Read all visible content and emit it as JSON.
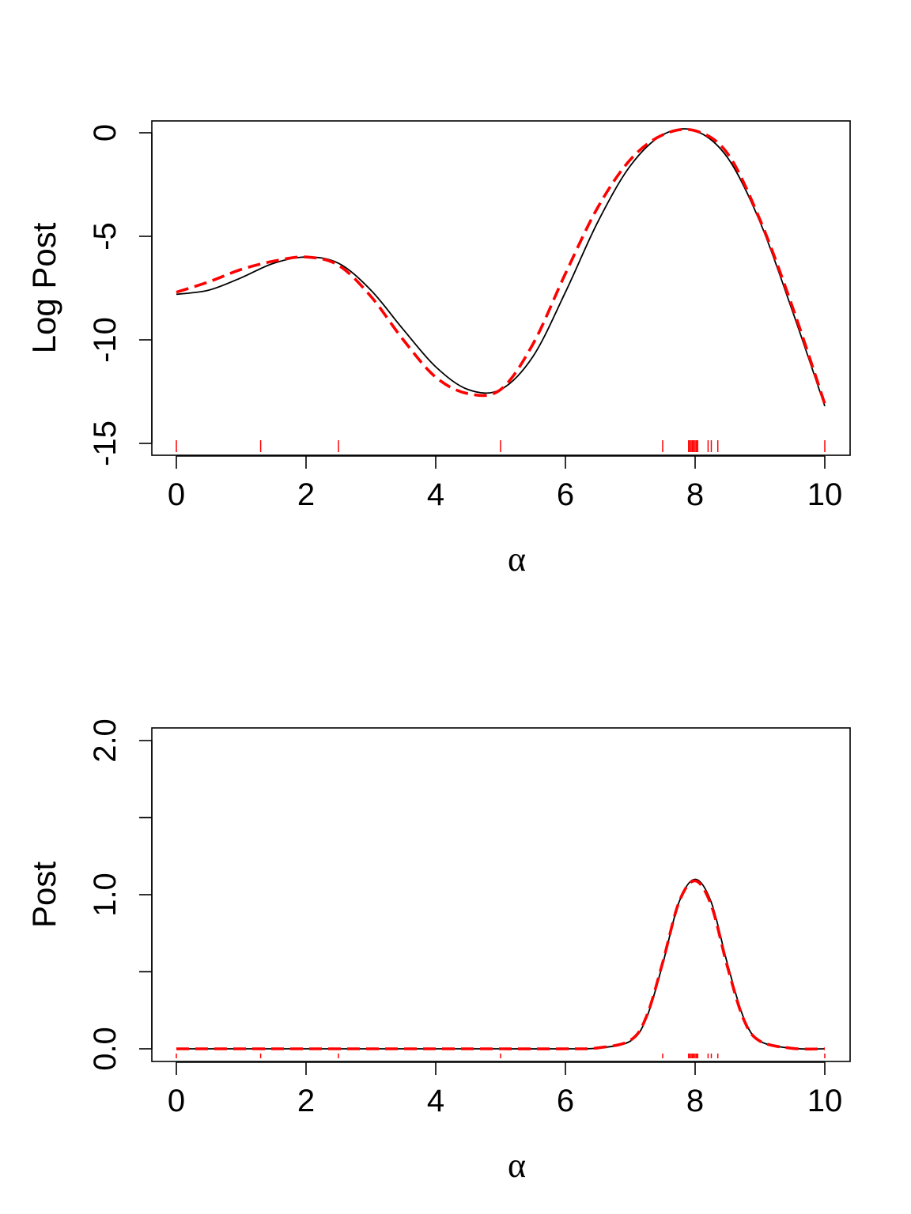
{
  "chart_data": [
    {
      "type": "line",
      "title": "",
      "xlabel": "α",
      "ylabel": "Log Post",
      "xlim": [
        0,
        10
      ],
      "ylim": [
        -15.3,
        0.6
      ],
      "x_ticks": [
        0,
        2,
        4,
        6,
        8,
        10
      ],
      "x_tick_labels": [
        "0",
        "2",
        "4",
        "6",
        "8",
        "10"
      ],
      "y_ticks": [
        -15,
        -10,
        -5,
        0
      ],
      "y_tick_labels": [
        "-15",
        "-10",
        "-5",
        "0"
      ],
      "grid": false,
      "series": [
        {
          "style": "solid",
          "color": "#000000",
          "x": [
            0,
            0.5,
            1,
            1.5,
            2,
            2.5,
            3,
            3.5,
            4,
            4.5,
            5,
            5.5,
            6,
            6.5,
            7,
            7.5,
            8,
            8.5,
            9,
            9.5,
            10
          ],
          "y": [
            -7.8,
            -7.6,
            -7.0,
            -6.3,
            -6.0,
            -6.3,
            -7.6,
            -9.5,
            -11.3,
            -12.4,
            -12.4,
            -10.8,
            -7.7,
            -4.3,
            -1.6,
            -0.1,
            0.1,
            -1.2,
            -4.3,
            -8.6,
            -13.2
          ]
        },
        {
          "style": "dashed",
          "color": "#ff0000",
          "x": [
            0,
            0.5,
            1,
            1.5,
            2,
            2.5,
            3,
            3.5,
            4,
            4.5,
            5,
            5.5,
            6,
            6.5,
            7,
            7.5,
            8,
            8.5,
            9,
            9.5,
            10
          ],
          "y": [
            -7.7,
            -7.2,
            -6.6,
            -6.2,
            -6.0,
            -6.4,
            -7.9,
            -10.0,
            -11.8,
            -12.6,
            -12.4,
            -10.2,
            -6.8,
            -3.6,
            -1.3,
            -0.1,
            0.1,
            -1.0,
            -4.2,
            -8.4,
            -13.1
          ]
        }
      ],
      "rug": {
        "color": "#ff0000",
        "x": [
          0,
          1.3,
          2.5,
          5.0,
          7.5,
          7.9,
          7.92,
          7.94,
          7.96,
          7.98,
          8.0,
          8.02,
          8.04,
          8.2,
          8.25,
          8.35,
          10.0
        ]
      }
    },
    {
      "type": "line",
      "title": "",
      "xlabel": "α",
      "ylabel": "Post",
      "xlim": [
        0,
        10
      ],
      "ylim": [
        -0.07,
        2.08
      ],
      "x_ticks": [
        0,
        2,
        4,
        6,
        8,
        10
      ],
      "x_tick_labels": [
        "0",
        "2",
        "4",
        "6",
        "8",
        "10"
      ],
      "y_ticks": [
        0.0,
        0.5,
        1.0,
        1.5,
        2.0
      ],
      "y_tick_labels": [
        "0.0",
        "",
        "1.0",
        "",
        "2.0"
      ],
      "grid": false,
      "series": [
        {
          "style": "solid",
          "color": "#000000",
          "x": [
            0,
            1,
            2,
            3,
            4,
            5,
            6,
            6.5,
            7,
            7.25,
            7.5,
            7.75,
            8,
            8.25,
            8.5,
            8.75,
            9,
            9.5,
            10
          ],
          "y": [
            0,
            0,
            0,
            0,
            0,
            0,
            0,
            0.005,
            0.05,
            0.2,
            0.55,
            0.95,
            1.1,
            0.95,
            0.55,
            0.2,
            0.05,
            0.003,
            0
          ]
        },
        {
          "style": "dashed",
          "color": "#ff0000",
          "x": [
            0,
            1,
            2,
            3,
            4,
            5,
            6,
            6.5,
            7,
            7.25,
            7.5,
            7.75,
            8,
            8.25,
            8.5,
            8.75,
            9,
            9.5,
            10
          ],
          "y": [
            0,
            0,
            0,
            0,
            0,
            0,
            0,
            0.006,
            0.055,
            0.21,
            0.56,
            0.95,
            1.09,
            0.93,
            0.53,
            0.19,
            0.05,
            0.003,
            0
          ]
        }
      ],
      "rug": {
        "color": "#ff0000",
        "x": [
          0,
          1.3,
          2.5,
          5.0,
          7.5,
          7.9,
          7.92,
          7.94,
          7.96,
          7.98,
          8.0,
          8.02,
          8.04,
          8.2,
          8.25,
          8.35,
          10.0
        ]
      }
    }
  ]
}
